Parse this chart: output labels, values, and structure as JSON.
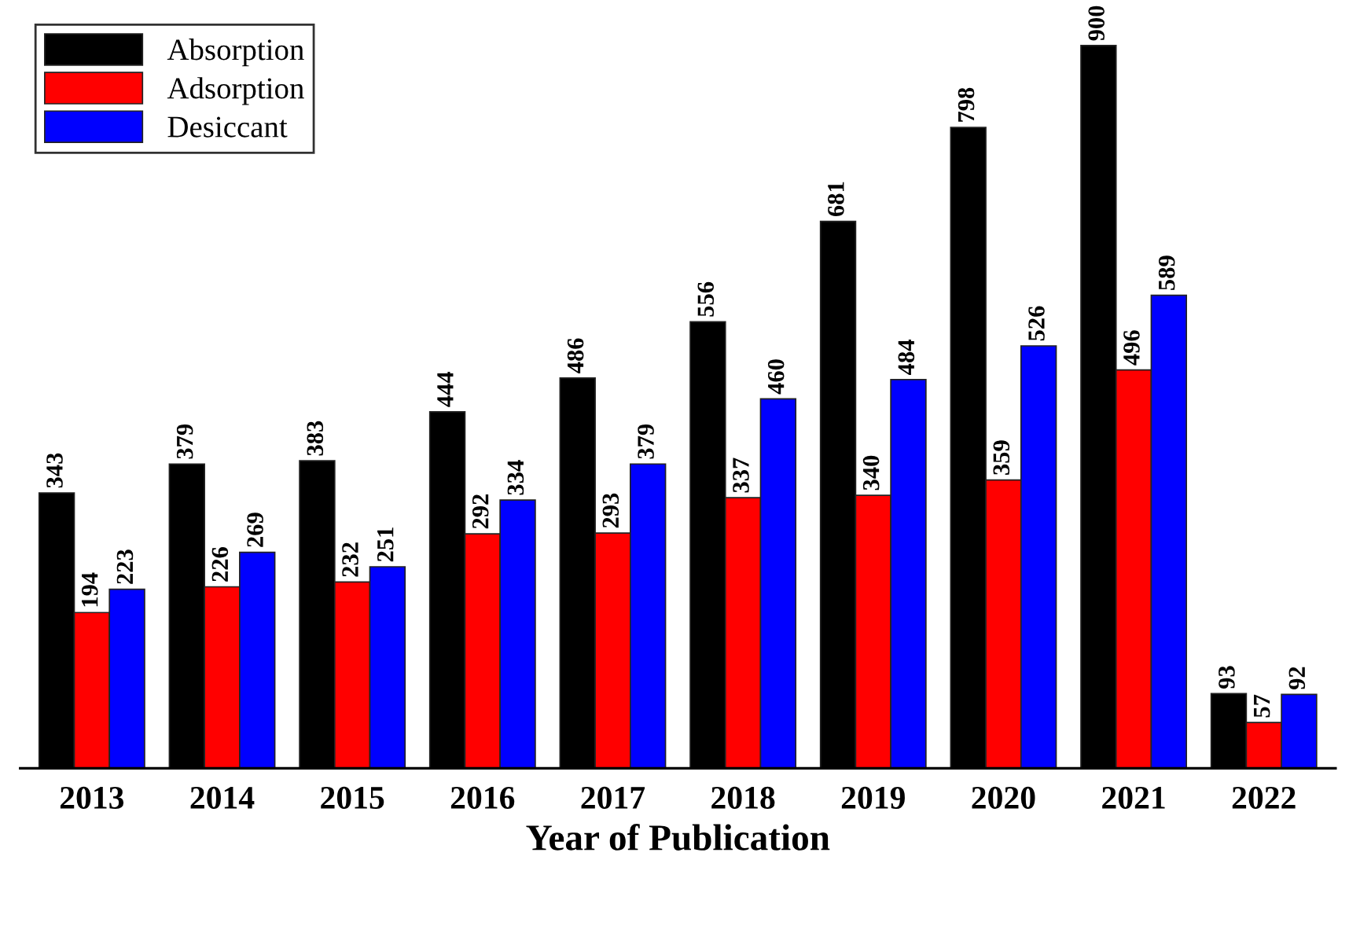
{
  "chart_data": {
    "type": "bar",
    "xlabel": "Year of Publication",
    "categories": [
      "2013",
      "2014",
      "2015",
      "2016",
      "2017",
      "2018",
      "2019",
      "2020",
      "2021",
      "2022"
    ],
    "series": [
      {
        "name": "Absorption",
        "color": "#000000",
        "values": [
          343,
          379,
          383,
          444,
          486,
          556,
          681,
          798,
          900,
          93
        ]
      },
      {
        "name": "Adsorption",
        "color": "#ff0000",
        "values": [
          194,
          226,
          232,
          292,
          293,
          337,
          340,
          359,
          496,
          57
        ]
      },
      {
        "name": "Desiccant",
        "color": "#0000ff",
        "values": [
          223,
          269,
          251,
          334,
          379,
          460,
          484,
          526,
          589,
          92
        ]
      }
    ],
    "tick_labels": "x",
    "data_labels": true,
    "legend": "top left",
    "grid": false
  }
}
